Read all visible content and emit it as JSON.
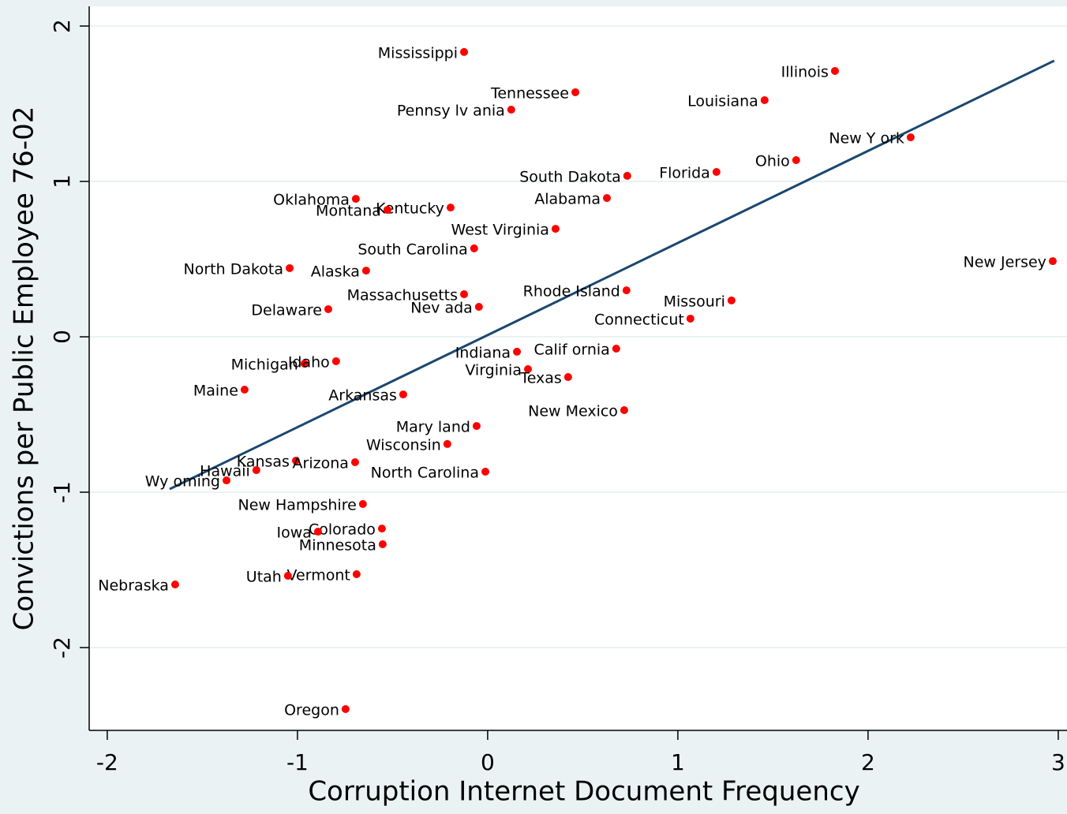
{
  "chart_data": {
    "type": "scatter",
    "x_label": "Corruption Internet Document Frequency",
    "y_label": "Convictions per Public Employee 76-02",
    "xlim": [
      -2.095,
      3.046
    ],
    "ylim": [
      -2.533,
      2.127
    ],
    "xticks": [
      -2,
      -1,
      0,
      1,
      2,
      3
    ],
    "yticks": [
      -2,
      -1,
      0,
      1,
      2
    ],
    "grid": true,
    "color": "#ff0000",
    "labels": [
      "Mississippi",
      "Tennessee",
      "Pennsy lv ania",
      "Illinois",
      "Louisiana",
      "New Y ork",
      "Ohio",
      "Florida",
      "South Dakota",
      "Alabama",
      "Oklahoma",
      "Kentucky",
      "Montana",
      "West Virginia",
      "South Carolina",
      "New Jersey",
      "North Dakota",
      "Alaska",
      "Rhode Island",
      "Massachusetts",
      "Missouri",
      "Nev ada",
      "Delaware",
      "Connecticut",
      "Calif ornia",
      "Indiana",
      "Michigan",
      "Idaho",
      "Virginia",
      "Texas",
      "Maine",
      "Arkansas",
      "New Mexico",
      "Mary land",
      "Wisconsin",
      "Kansas",
      "Arizona",
      "North Carolina",
      "Hawaii",
      "Wy oming",
      "New Hampshire",
      "Colorado",
      "Iowa",
      "Minnesota",
      "Vermont",
      "Utah",
      "Nebraska",
      "Oregon"
    ],
    "x": [
      -0.124,
      0.461,
      0.124,
      1.826,
      1.456,
      2.224,
      1.622,
      1.203,
      0.734,
      0.627,
      -0.693,
      -0.195,
      -0.527,
      0.357,
      -0.071,
      2.971,
      -1.041,
      -0.639,
      0.73,
      -0.124,
      1.282,
      -0.046,
      -0.838,
      1.066,
      0.676,
      0.154,
      -0.963,
      -0.797,
      0.212,
      0.423,
      -1.278,
      -0.444,
      0.718,
      -0.058,
      -0.212,
      -1.008,
      -0.697,
      -0.012,
      -1.216,
      -1.373,
      -0.656,
      -0.556,
      -0.892,
      -0.552,
      -0.689,
      -1.05,
      -1.643,
      -0.747
    ],
    "y": [
      1.833,
      1.574,
      1.462,
      1.711,
      1.523,
      1.284,
      1.137,
      1.061,
      1.036,
      0.893,
      0.888,
      0.832,
      0.817,
      0.695,
      0.569,
      0.487,
      0.442,
      0.426,
      0.299,
      0.274,
      0.234,
      0.193,
      0.178,
      0.117,
      -0.076,
      -0.096,
      -0.173,
      -0.157,
      -0.208,
      -0.259,
      -0.34,
      -0.371,
      -0.472,
      -0.574,
      -0.69,
      -0.797,
      -0.807,
      -0.868,
      -0.858,
      -0.924,
      -1.076,
      -1.234,
      -1.254,
      -1.335,
      -1.528,
      -1.538,
      -1.594,
      -2.396
    ],
    "fit_line": {
      "x": [
        -1.672,
        2.979
      ],
      "y": [
        -0.98,
        1.777
      ],
      "color": "#1a476f"
    }
  }
}
